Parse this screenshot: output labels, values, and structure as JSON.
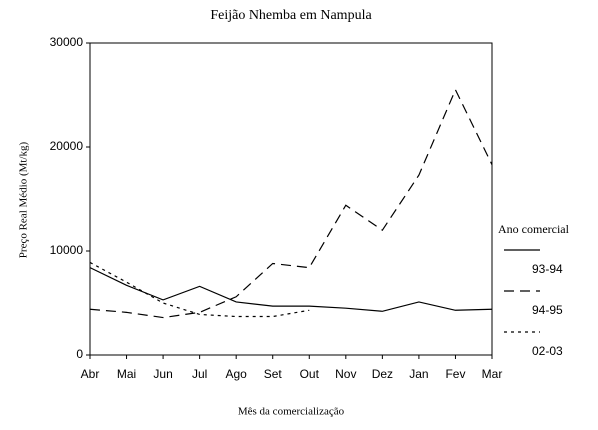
{
  "chart_data": {
    "type": "line",
    "title": "Feijão Nhemba em Nampula",
    "xlabel": "Mês da comercialização",
    "ylabel": "Preço Real Médio (Mt/kg)",
    "legend_title": "Ano comercial",
    "categories": [
      "Abr",
      "Mai",
      "Jun",
      "Jul",
      "Ago",
      "Set",
      "Out",
      "Nov",
      "Dez",
      "Jan",
      "Fev",
      "Mar"
    ],
    "series": [
      {
        "name": "93-94",
        "color": "#000000",
        "style": "solid",
        "values": [
          8400,
          6700,
          5300,
          6600,
          5100,
          4700,
          4700,
          4500,
          4200,
          5100,
          4300,
          4400
        ]
      },
      {
        "name": "94-95",
        "color": "#000000",
        "style": "dashed",
        "values": [
          4400,
          4100,
          3600,
          4100,
          5600,
          8800,
          8400,
          14400,
          12000,
          17300,
          25500,
          18300
        ]
      },
      {
        "name": "02-03",
        "color": "#000000",
        "style": "dotted",
        "values": [
          8900,
          7000,
          5000,
          3900,
          3700,
          3700,
          4300,
          null,
          null,
          null,
          null,
          null
        ]
      }
    ],
    "ylim": [
      0,
      30000
    ],
    "yticks": [
      0,
      10000,
      20000,
      30000
    ],
    "legend": "right"
  }
}
